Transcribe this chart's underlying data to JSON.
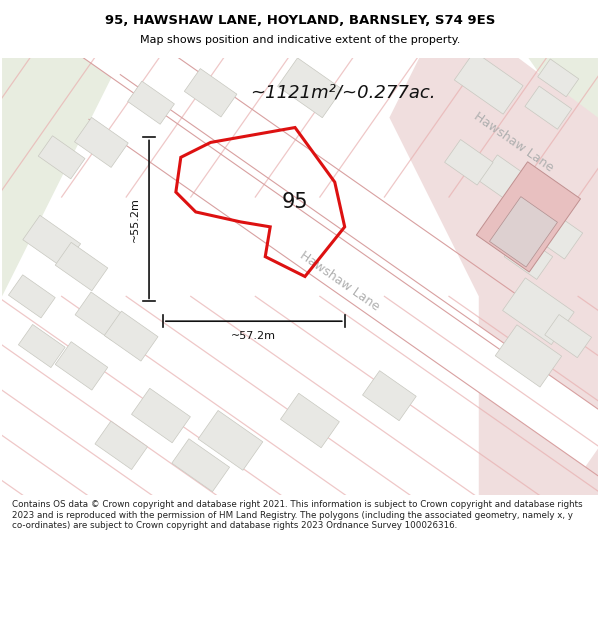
{
  "title_line1": "95, HAWSHAW LANE, HOYLAND, BARNSLEY, S74 9ES",
  "title_line2": "Map shows position and indicative extent of the property.",
  "area_text": "~1121m²/~0.277ac.",
  "label_95": "95",
  "dim_width": "~57.2m",
  "dim_height": "~55.2m",
  "road_label_main": "Hawshaw Lane",
  "road_label_upper": "Hawshaw Lane",
  "footer_text": "Contains OS data © Crown copyright and database right 2021. This information is subject to Crown copyright and database rights 2023 and is reproduced with the permission of HM Land Registry. The polygons (including the associated geometry, namely x, y co-ordinates) are subject to Crown copyright and database rights 2023 Ordnance Survey 100026316.",
  "map_bg": "#f7f7f5",
  "road_color": "#f5d5d0",
  "road_line_color": "#e8b0b0",
  "building_color": "#e8e8e4",
  "building_edge": "#c8c8c0",
  "highlight_color": "#dd1111",
  "highlight_fill": "none",
  "green_area": "#e8ede0",
  "pink_zone": "#f0dede",
  "white_road": "#ffffff",
  "footer_bg": "#ffffff",
  "title_bg": "#ffffff",
  "dim_color": "#111111",
  "road_text_color": "#b0b0b0",
  "area_text_color": "#111111"
}
